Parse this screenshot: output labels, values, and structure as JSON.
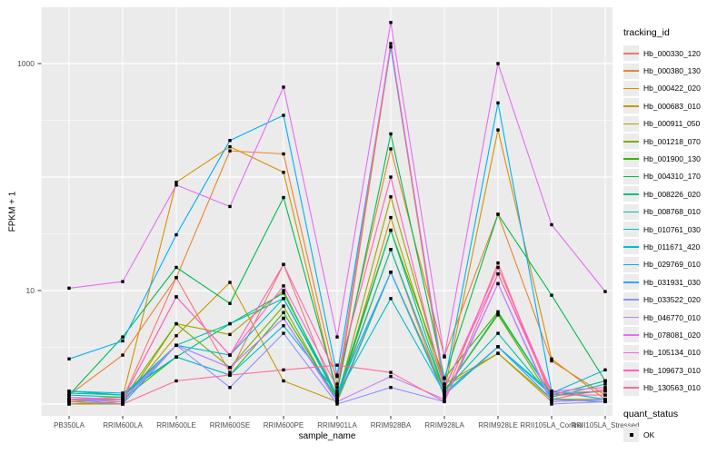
{
  "figure": {
    "background": "#FFFFFF",
    "panel_background": "#EBEBEB",
    "gridline_color": "#FFFFFF",
    "axis_text_color": "#4D4D4D",
    "tick_mark_color": "#333333"
  },
  "chart_data": {
    "type": "line",
    "title": "",
    "xlabel": "sample_name",
    "ylabel": "FPKM + 1",
    "y_scale": "log10",
    "ylim": [
      0.79,
      3000
    ],
    "grid": "major-and-minor, white on gray panel",
    "legend_position": "right",
    "y_ticks": [
      {
        "label": "1000",
        "value": 1000
      },
      {
        "label": "10",
        "value": 10
      }
    ],
    "y_gridlines_major": [
      1,
      10,
      100,
      1000
    ],
    "y_gridlines_minor": [
      3.162,
      31.62,
      316.2,
      3162
    ],
    "categories": [
      "PB350LA",
      "RRIM600LA",
      "RRIM600LE",
      "RRIM600SE",
      "RRIM600PE",
      "RRIM901LA",
      "RRIM928BA",
      "RRIM928LA",
      "RRIM928LE",
      "RRII105LA_Control",
      "RRII105LA_Stressed"
    ],
    "marker": {
      "shape": "square",
      "color": "#000000",
      "label": "OK"
    },
    "series": [
      {
        "name": "Hb_000330_120",
        "color": "#F8766D",
        "values": [
          1.05,
          1.1,
          13,
          1.9,
          17,
          1.1,
          23,
          1.15,
          17.5,
          1.1,
          1.35
        ]
      },
      {
        "name": "Hb_000380_130",
        "color": "#EA8331",
        "values": [
          1.2,
          2.7,
          13,
          170,
          160,
          1.5,
          177,
          2.65,
          47,
          2.4,
          1.2
        ]
      },
      {
        "name": "Hb_000422_020",
        "color": "#D89000",
        "values": [
          1.1,
          1.15,
          90,
          185,
          110,
          1.2,
          1400,
          1.3,
          260,
          2.5,
          1.1
        ]
      },
      {
        "name": "Hb_000683_010",
        "color": "#C09B00",
        "values": [
          1.0,
          1.05,
          4.0,
          11.8,
          1.6,
          1.05,
          44,
          1.4,
          2.8,
          1.05,
          1.1
        ]
      },
      {
        "name": "Hb_000911_050",
        "color": "#A3A500",
        "values": [
          1.05,
          1.1,
          5.1,
          4.1,
          10,
          1.1,
          67,
          1.5,
          2.8,
          1.1,
          1.05
        ]
      },
      {
        "name": "Hb_001218_070",
        "color": "#7CAE00",
        "values": [
          1.0,
          1.0,
          5.1,
          2.1,
          7.3,
          1.05,
          14.5,
          1.3,
          6.1,
          1.1,
          1.1
        ]
      },
      {
        "name": "Hb_001900_130",
        "color": "#39B600",
        "values": [
          1.1,
          1.1,
          2.6,
          1.8,
          6.4,
          1.1,
          34,
          1.68,
          6.5,
          1.2,
          1.6
        ]
      },
      {
        "name": "Hb_004310_170",
        "color": "#00BB4E",
        "values": [
          1.2,
          3.9,
          16,
          7.7,
          66,
          1.3,
          240,
          1.7,
          47,
          9.1,
          1.6
        ]
      },
      {
        "name": "Hb_008226_020",
        "color": "#00BF7D",
        "values": [
          1.3,
          1.2,
          2.6,
          5.1,
          9.5,
          1.2,
          34,
          1.3,
          6.3,
          1.2,
          1.3
        ]
      },
      {
        "name": "Hb_008768_010",
        "color": "#00C1A3",
        "values": [
          1.2,
          1.15,
          3.3,
          5.1,
          8.5,
          1.15,
          23,
          1.3,
          4.2,
          1.15,
          1.5
        ]
      },
      {
        "name": "Hb_010761_030",
        "color": "#00BFC4",
        "values": [
          1.25,
          1.2,
          3.3,
          2.7,
          8.5,
          1.2,
          8.5,
          1.25,
          3.2,
          1.2,
          1.6
        ]
      },
      {
        "name": "Hb_011671_420",
        "color": "#00BAE0",
        "values": [
          1.3,
          1.25,
          2.6,
          1.8,
          4.9,
          1.25,
          14.5,
          1.2,
          3.2,
          1.25,
          2.0
        ]
      },
      {
        "name": "Hb_029769_010",
        "color": "#00B0F6",
        "values": [
          2.5,
          3.6,
          31,
          210,
          350,
          1.8,
          1400,
          1.5,
          450,
          1.3,
          1.1
        ]
      },
      {
        "name": "Hb_031931_030",
        "color": "#35A2FF",
        "values": [
          1.1,
          1.0,
          3.3,
          2.1,
          5.7,
          1.1,
          14.5,
          1.2,
          3.2,
          1.1,
          1.05
        ]
      },
      {
        "name": "Hb_033522_020",
        "color": "#9590FF",
        "values": [
          1.1,
          1.05,
          3.3,
          1.4,
          4.2,
          1.0,
          1.4,
          1.05,
          11.5,
          1.0,
          1.05
        ]
      },
      {
        "name": "Hb_046770_010",
        "color": "#C77CFF",
        "values": [
          1.15,
          1.1,
          3.3,
          2.1,
          5.7,
          1.05,
          1.75,
          1.1,
          11.5,
          1.05,
          1.1
        ]
      },
      {
        "name": "Hb_078081_020",
        "color": "#E76BF3",
        "values": [
          10.5,
          12,
          85,
          55,
          620,
          3.9,
          2300,
          2.6,
          1000,
          38,
          9.8
        ]
      },
      {
        "name": "Hb_105134_010",
        "color": "#FA62DB",
        "values": [
          1.1,
          1.1,
          8.8,
          2.7,
          11,
          1.4,
          1500,
          1.4,
          14,
          1.3,
          1.4
        ]
      },
      {
        "name": "Hb_109673_010",
        "color": "#FF62BC",
        "values": [
          1.1,
          1.1,
          8.8,
          2.7,
          17,
          1.75,
          100,
          1.35,
          16,
          1.25,
          1.3
        ]
      },
      {
        "name": "Hb_130563_010",
        "color": "#FF6A98",
        "values": [
          1.05,
          1.0,
          1.6,
          1.8,
          2.0,
          2.2,
          1.9,
          1.05,
          14,
          1.2,
          1.2
        ]
      }
    ],
    "legend": {
      "color_title": "tracking_id",
      "shape_title": "quant_status",
      "shape_entries": [
        {
          "label": "OK",
          "marker": "filled-square"
        }
      ]
    }
  }
}
